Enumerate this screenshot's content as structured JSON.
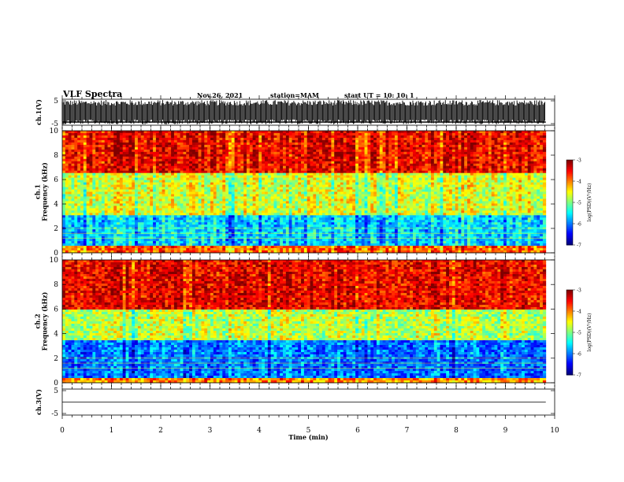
{
  "header": {
    "title": "VLF Spectra",
    "date": "Nov.26, 2021",
    "station": "station=MAM",
    "start": "start UT =  10: 10: 1"
  },
  "chart_data": [
    {
      "type": "line",
      "name": "ch1-waveform",
      "ylabel": "ch.1(V)",
      "ylim": [
        -5,
        5
      ],
      "yticks": [
        "5",
        "-5"
      ],
      "description_values": {
        "min": -5,
        "max": 5
      }
    },
    {
      "type": "heatmap",
      "name": "ch1-spectrogram",
      "ylabel": "ch.1\nFrequency (kHz)",
      "ylabel_lines": [
        "ch.1",
        "Frequency (kHz)"
      ],
      "ylim": [
        0,
        10
      ],
      "yticks": [
        "0",
        "2",
        "4",
        "6",
        "8",
        "10"
      ],
      "colorbar": {
        "label": "log(PSD)(V²/Hz)",
        "range": [
          -7,
          -3
        ],
        "ticks": [
          "-3",
          "-4",
          "-5",
          "-6",
          "-7"
        ]
      },
      "bands": [
        {
          "from_khz": 0,
          "to_khz": 0.5,
          "level": -3.8
        },
        {
          "from_khz": 0.5,
          "to_khz": 3,
          "level": -5.6
        },
        {
          "from_khz": 3,
          "to_khz": 6.5,
          "level": -4.6
        },
        {
          "from_khz": 6.5,
          "to_khz": 10,
          "level": -3.4
        }
      ]
    },
    {
      "type": "heatmap",
      "name": "ch2-spectrogram",
      "ylabel": "ch.2\nFrequency (kHz)",
      "ylabel_lines": [
        "ch.2",
        "Frequency (kHz)"
      ],
      "ylim": [
        0,
        10
      ],
      "yticks": [
        "0",
        "2",
        "4",
        "6",
        "8",
        "10"
      ],
      "colorbar": {
        "label": "log(PSD)(V²/Hz)",
        "range": [
          -7,
          -3
        ],
        "ticks": [
          "-3",
          "-4",
          "-5",
          "-6",
          "-7"
        ]
      },
      "bands": [
        {
          "from_khz": 0,
          "to_khz": 0.3,
          "level": -4.0
        },
        {
          "from_khz": 0.3,
          "to_khz": 3.5,
          "level": -6.0
        },
        {
          "from_khz": 3.5,
          "to_khz": 6,
          "level": -4.7
        },
        {
          "from_khz": 6,
          "to_khz": 10,
          "level": -3.4
        }
      ]
    },
    {
      "type": "line",
      "name": "ch3-waveform",
      "ylabel": "ch.3(V)",
      "ylim": [
        -5,
        5
      ],
      "yticks": [
        "5",
        "-5"
      ],
      "values_flat": 0
    }
  ],
  "xaxis": {
    "label": "Time (min)",
    "range": [
      0,
      10
    ],
    "ticks": [
      "0",
      "1",
      "2",
      "3",
      "4",
      "5",
      "6",
      "7",
      "8",
      "9",
      "10"
    ],
    "data_end": 9.82
  }
}
